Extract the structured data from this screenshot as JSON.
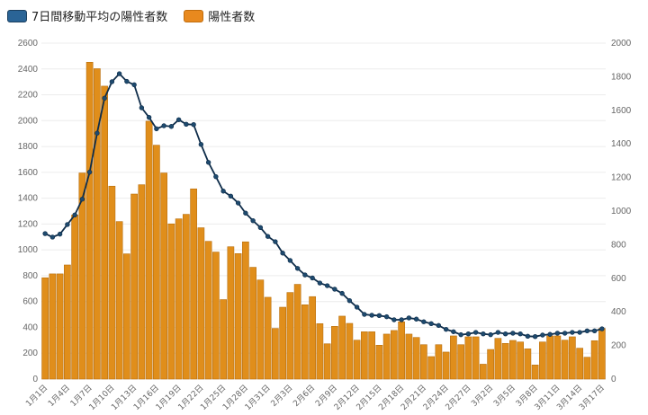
{
  "legend": {
    "line_label": "7日間移動平均の陽性者数",
    "bar_label": "陽性者数",
    "line_color": "#2a6496",
    "bar_color": "#e8891e"
  },
  "chart_data": {
    "type": "bar",
    "title": "",
    "xlabel": "",
    "ylabel": "",
    "ylim": [
      0,
      2600
    ],
    "y2lim": [
      0,
      2000
    ],
    "left_ticks": [
      0,
      200,
      400,
      600,
      800,
      1000,
      1200,
      1400,
      1600,
      1800,
      2000,
      2200,
      2400,
      2600
    ],
    "right_ticks": [
      0,
      200,
      400,
      600,
      800,
      1000,
      1200,
      1400,
      1600,
      1800,
      2000
    ],
    "x_tick_labels": [
      "1月1日",
      "1月4日",
      "1月7日",
      "1月10日",
      "1月13日",
      "1月16日",
      "1月19日",
      "1月22日",
      "1月25日",
      "1月28日",
      "1月31日",
      "2月3日",
      "2月6日",
      "2月9日",
      "2月12日",
      "2月15日",
      "2月18日",
      "2月21日",
      "2月24日",
      "2月27日",
      "3月2日",
      "3月5日",
      "3月8日",
      "3月11日",
      "3月14日",
      "3月17日"
    ],
    "grid": true,
    "legend_position": "top-left",
    "series": [
      {
        "name": "陽性者数",
        "type": "bar",
        "axis": "left",
        "color": "#e08e1b",
        "values": [
          784,
          814,
          814,
          883,
          1270,
          1595,
          2452,
          2402,
          2267,
          1493,
          1219,
          969,
          1432,
          1504,
          1996,
          1810,
          1595,
          1201,
          1240,
          1275,
          1472,
          1171,
          1066,
          983,
          615,
          1024,
          971,
          1062,
          865,
          767,
          633,
          392,
          556,
          670,
          733,
          575,
          638,
          429,
          273,
          408,
          487,
          431,
          301,
          366,
          366,
          262,
          348,
          376,
          443,
          348,
          322,
          266,
          174,
          266,
          209,
          334,
          266,
          327,
          327,
          115,
          229,
          315,
          276,
          299,
          287,
          234,
          109,
          287,
          334,
          334,
          301,
          327,
          239,
          169,
          297,
          392
        ]
      },
      {
        "name": "7日間移動平均の陽性者数",
        "type": "line",
        "axis": "right",
        "color": "#0f2d4a",
        "values": [
          866,
          845,
          863,
          920,
          977,
          1071,
          1232,
          1464,
          1672,
          1770,
          1818,
          1772,
          1752,
          1615,
          1558,
          1490,
          1508,
          1504,
          1544,
          1517,
          1515,
          1397,
          1290,
          1205,
          1119,
          1089,
          1048,
          988,
          943,
          902,
          849,
          818,
          750,
          706,
          659,
          620,
          602,
          572,
          556,
          535,
          510,
          467,
          428,
          385,
          380,
          378,
          371,
          353,
          353,
          364,
          357,
          341,
          330,
          319,
          296,
          282,
          264,
          269,
          278,
          269,
          264,
          278,
          269,
          273,
          269,
          255,
          253,
          262,
          266,
          273,
          273,
          278,
          278,
          287,
          287,
          299
        ]
      }
    ]
  }
}
